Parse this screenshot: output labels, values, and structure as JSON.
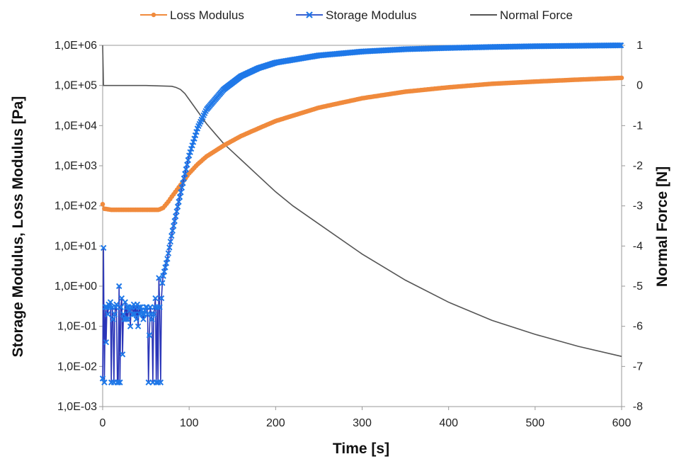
{
  "chart_data": {
    "type": "line",
    "xlabel": "Time [s]",
    "ylabel_left": "Storage Modulus, Loss Modulus [Pa]",
    "ylabel_right": "Normal Force [N]",
    "xlim": [
      0,
      600
    ],
    "x_ticks": [
      "0",
      "100",
      "200",
      "300",
      "400",
      "500",
      "600"
    ],
    "y_left_scale": "log",
    "y_left_lim": [
      0.001,
      1000000
    ],
    "y_left_ticks": [
      "1,0E-03",
      "1,0E-02",
      "1,0E-01",
      "1,0E+00",
      "1,0E+01",
      "1,0E+02",
      "1,0E+03",
      "1,0E+04",
      "1,0E+05",
      "1,0E+06"
    ],
    "y_right_lim": [
      -8,
      1
    ],
    "y_right_ticks": [
      "-8",
      "-7",
      "-6",
      "-5",
      "-4",
      "-3",
      "-2",
      "-1",
      "0",
      "1"
    ],
    "grid": false,
    "legend_position": "top",
    "series": [
      {
        "name": "Loss Modulus",
        "axis": "left",
        "color": "#f08a3c",
        "marker": "circle",
        "x": [
          0,
          2,
          10,
          30,
          50,
          65,
          70,
          75,
          80,
          90,
          100,
          110,
          120,
          140,
          160,
          180,
          200,
          250,
          300,
          350,
          400,
          450,
          500,
          550,
          600
        ],
        "y": [
          110,
          85,
          80,
          80,
          80,
          80,
          90,
          120,
          170,
          330,
          650,
          1100,
          1700,
          3200,
          5500,
          8500,
          13000,
          28000,
          48000,
          70000,
          90000,
          110000,
          125000,
          140000,
          155000
        ]
      },
      {
        "name": "Storage Modulus",
        "axis": "left",
        "color": "#3a5fd0",
        "marker": "x",
        "x": [
          0,
          1,
          2,
          3,
          4,
          5,
          6,
          7,
          8,
          9,
          10,
          11,
          12,
          13,
          14,
          15,
          16,
          17,
          18,
          19,
          20,
          21,
          22,
          23,
          24,
          25,
          26,
          27,
          28,
          29,
          30,
          31,
          32,
          33,
          34,
          35,
          36,
          37,
          38,
          39,
          40,
          41,
          42,
          43,
          44,
          45,
          46,
          47,
          48,
          49,
          50,
          51,
          52,
          53,
          54,
          55,
          56,
          57,
          58,
          59,
          60,
          61,
          62,
          63,
          64,
          65,
          66,
          67,
          68,
          69,
          70,
          75,
          80,
          90,
          100,
          110,
          120,
          140,
          160,
          180,
          200,
          250,
          300,
          350,
          400,
          450,
          500,
          550,
          600
        ],
        "y": [
          0.005,
          9,
          0.004,
          0.3,
          0.04,
          0.3,
          0.2,
          0.35,
          0.3,
          0.4,
          0.004,
          0.3,
          0.15,
          0.004,
          0.2,
          0.3,
          0.35,
          0.004,
          0.004,
          1.0,
          0.004,
          0.3,
          0.5,
          0.02,
          0.2,
          0.15,
          0.4,
          0.15,
          0.3,
          0.15,
          0.3,
          0.25,
          0.1,
          0.3,
          0.3,
          0.2,
          0.35,
          0.2,
          0.3,
          0.15,
          0.35,
          0.1,
          0.3,
          0.2,
          0.3,
          0.25,
          0.2,
          0.15,
          0.2,
          0.25,
          0.3,
          0.3,
          0.2,
          0.004,
          0.06,
          0.3,
          0.2,
          0.15,
          0.004,
          0.2,
          0.3,
          0.5,
          0.004,
          0.3,
          0.004,
          1.6,
          0.3,
          0.004,
          0.5,
          1.2,
          1.8,
          5,
          20,
          200,
          1800,
          9000,
          25000,
          80000,
          170000,
          270000,
          370000,
          560000,
          700000,
          800000,
          860000,
          910000,
          950000,
          975000,
          1000000
        ]
      },
      {
        "name": "Normal Force",
        "axis": "right",
        "color": "#555555",
        "marker": "none",
        "x": [
          0,
          1,
          3,
          10,
          50,
          80,
          85,
          90,
          95,
          100,
          110,
          120,
          130,
          140,
          150,
          160,
          180,
          200,
          220,
          250,
          300,
          350,
          400,
          450,
          500,
          550,
          600
        ],
        "y": [
          1,
          0,
          0,
          0,
          0,
          -0.02,
          -0.05,
          -0.1,
          -0.2,
          -0.35,
          -0.65,
          -0.95,
          -1.2,
          -1.45,
          -1.65,
          -1.85,
          -2.25,
          -2.65,
          -3.0,
          -3.45,
          -4.2,
          -4.85,
          -5.4,
          -5.85,
          -6.2,
          -6.5,
          -6.75
        ]
      }
    ]
  }
}
